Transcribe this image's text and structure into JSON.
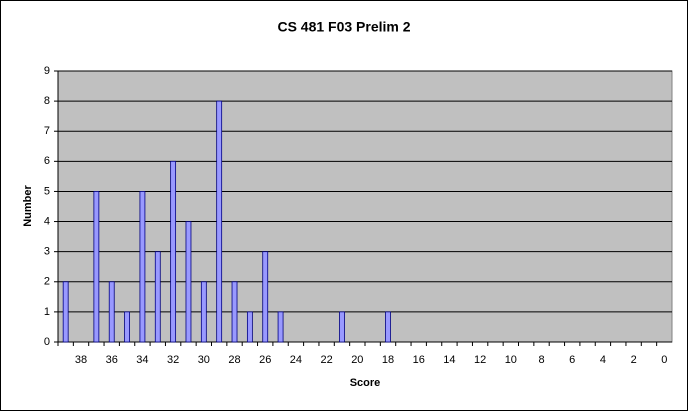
{
  "chart_data": {
    "type": "bar",
    "title": "CS 481 F03 Prelim 2",
    "x_label": "Score",
    "y_label": "Number",
    "categories": [
      null,
      "38",
      null,
      "36",
      null,
      "34",
      null,
      "32",
      null,
      "30",
      null,
      "28",
      null,
      "26",
      null,
      "24",
      null,
      "22",
      null,
      "20",
      null,
      "18",
      null,
      "16",
      null,
      "14",
      null,
      "12",
      null,
      "10",
      null,
      "8",
      null,
      "6",
      null,
      "4",
      null,
      "2",
      null,
      "0"
    ],
    "values": [
      2,
      0,
      5,
      2,
      1,
      5,
      3,
      6,
      4,
      2,
      8,
      2,
      1,
      3,
      1,
      0,
      0,
      0,
      1,
      0,
      0,
      1,
      0,
      0,
      0,
      0,
      0,
      0,
      0,
      0,
      0,
      0,
      0,
      0,
      0,
      0,
      0,
      0,
      0,
      0
    ],
    "color": "#9999ff",
    "ylim": [
      0,
      9
    ],
    "yticks": [
      0,
      1,
      2,
      3,
      4,
      5,
      6,
      7,
      8,
      9
    ],
    "grid": true
  }
}
